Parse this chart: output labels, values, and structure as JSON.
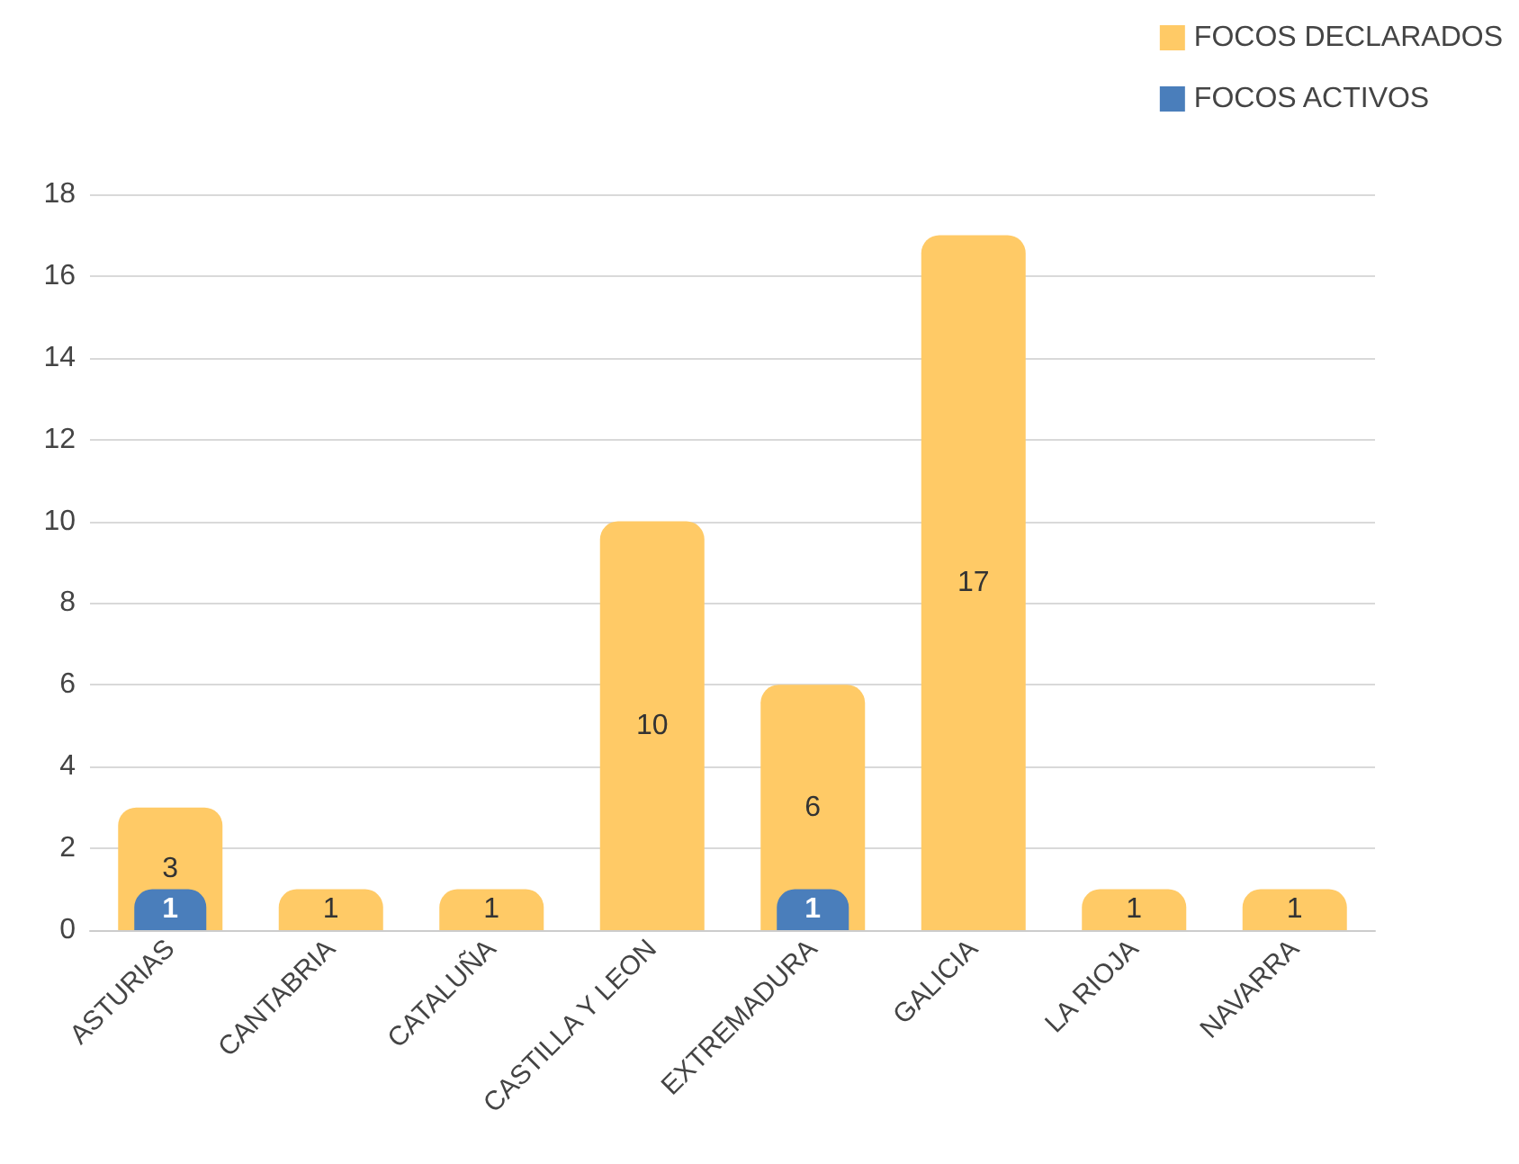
{
  "chart_data": {
    "type": "bar",
    "categories": [
      "ASTURIAS",
      "CANTABRIA",
      "CATALUÑA",
      "CASTILLA Y LEON",
      "EXTREMADURA",
      "GALICIA",
      "LA RIOJA",
      "NAVARRA"
    ],
    "series": [
      {
        "name": "FOCOS DECLARADOS",
        "color": "#ffca66",
        "values": [
          3,
          1,
          1,
          10,
          6,
          17,
          1,
          1
        ]
      },
      {
        "name": "FOCOS ACTIVOS",
        "color": "#4a7ebb",
        "values": [
          1,
          null,
          null,
          null,
          1,
          null,
          null,
          null
        ]
      }
    ],
    "ylim": [
      0,
      18
    ],
    "yticks": [
      0,
      2,
      4,
      6,
      8,
      10,
      12,
      14,
      16,
      18
    ],
    "grid": "y",
    "legend": "top right",
    "data_labels": true
  }
}
